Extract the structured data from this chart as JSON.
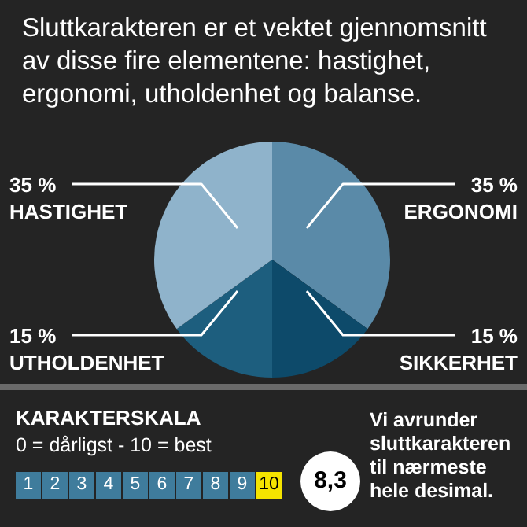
{
  "chart_data": {
    "type": "pie",
    "title": "Sluttkarakteren er et vektet gjennomsnitt av disse fire elementene: hastighet, ergonomi, utholdenhet og balanse.",
    "categories": [
      "ERGONOMI",
      "SIKKERHET",
      "UTHOLDENHET",
      "HASTIGHET"
    ],
    "values": [
      35,
      15,
      15,
      35
    ],
    "value_labels": [
      "35 %",
      "15 %",
      "15 %",
      "35 %"
    ],
    "colors": [
      "#5a8aa8",
      "#0d4a6a",
      "#1d5e7e",
      "#8fb3cb"
    ],
    "annotations": [
      "KARAKTERSKALA",
      "0 = dårligst - 10 = best",
      "1",
      "2",
      "3",
      "4",
      "5",
      "6",
      "7",
      "8",
      "9",
      "10",
      "8,3",
      "Vi avrunder sluttkarakteren til nærmeste hele desimal."
    ]
  }
}
